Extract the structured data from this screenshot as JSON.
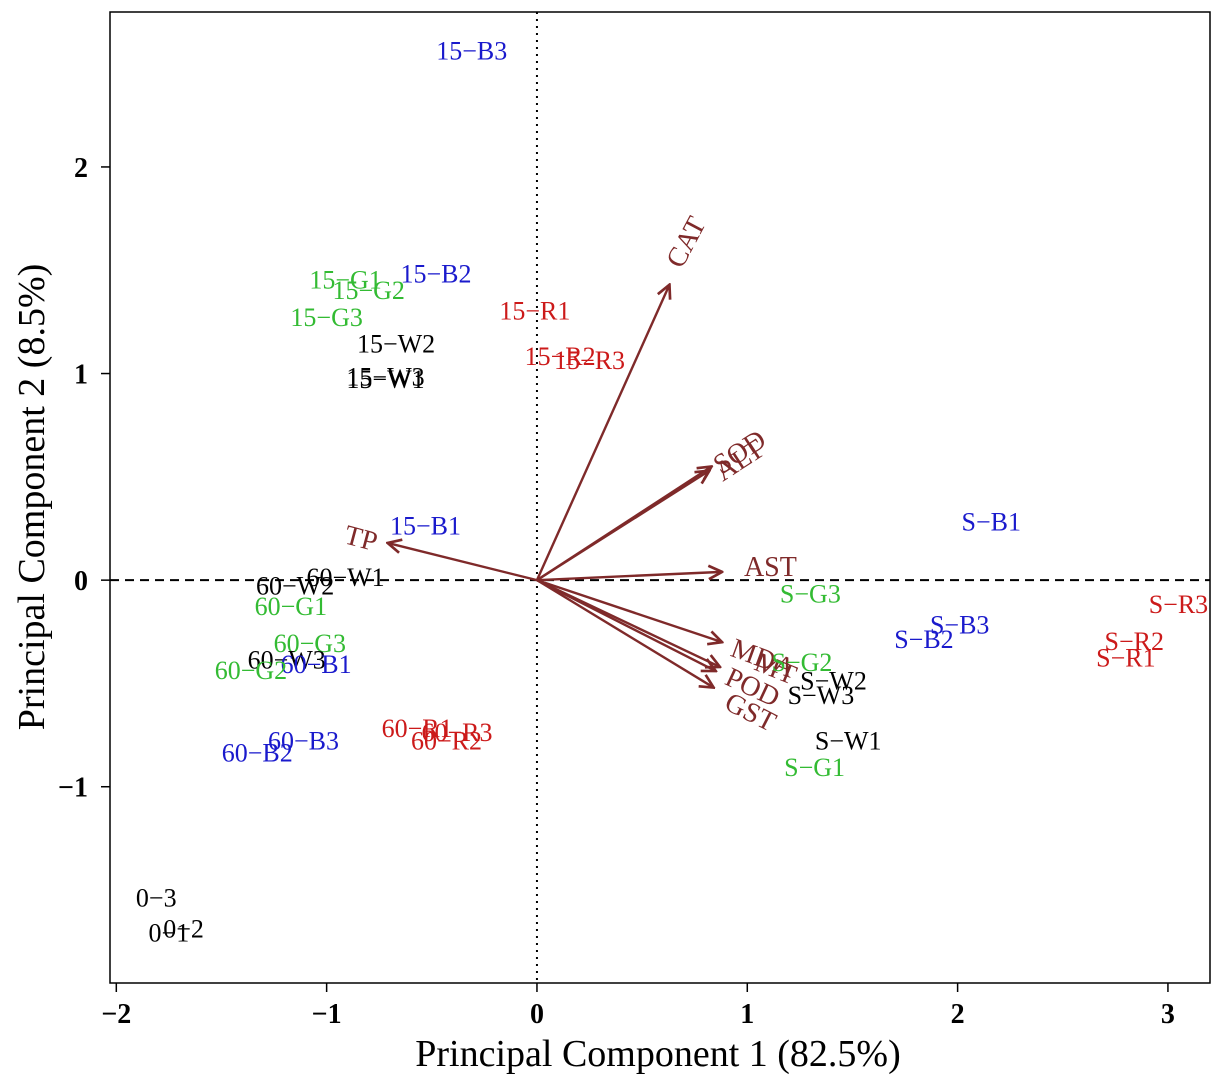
{
  "chart_data": {
    "type": "scatter",
    "subtype": "pca-biplot",
    "xlabel": "Principal Component 1 (82.5%)",
    "ylabel": "Principal Component 2 (8.5%)",
    "xlim": [
      -2.03,
      3.2
    ],
    "ylim": [
      -1.95,
      2.75
    ],
    "xticks": [
      -2,
      -1,
      0,
      1,
      2,
      3
    ],
    "yticks": [
      -1,
      0,
      1,
      2
    ],
    "xtick_labels": [
      "−2",
      "−1",
      "0",
      "1",
      "2",
      "3"
    ],
    "ytick_labels": [
      "−1",
      "0",
      "1",
      "2"
    ],
    "reference_lines": {
      "x0": "dotted",
      "y0": "dashed"
    },
    "colors": {
      "W": "#000000",
      "G": "#33bb33",
      "B": "#1a1acc",
      "R": "#cc1a1a",
      "control": "#000000",
      "vector": "#7f2a2a"
    },
    "points": [
      {
        "label": "15−B3",
        "x": -0.31,
        "y": 2.55,
        "group": "B"
      },
      {
        "label": "15−G1",
        "x": -0.91,
        "y": 1.44,
        "group": "G"
      },
      {
        "label": "15−B2",
        "x": -0.48,
        "y": 1.47,
        "group": "B"
      },
      {
        "label": "15−G2",
        "x": -0.8,
        "y": 1.39,
        "group": "G"
      },
      {
        "label": "15−G3",
        "x": -1.0,
        "y": 1.26,
        "group": "G"
      },
      {
        "label": "15−R1",
        "x": -0.01,
        "y": 1.29,
        "group": "R"
      },
      {
        "label": "15−W2",
        "x": -0.67,
        "y": 1.13,
        "group": "W"
      },
      {
        "label": "15−R2",
        "x": 0.11,
        "y": 1.07,
        "group": "R"
      },
      {
        "label": "15−R3",
        "x": 0.25,
        "y": 1.05,
        "group": "R"
      },
      {
        "label": "15−W3",
        "x": -0.72,
        "y": 0.97,
        "group": "W"
      },
      {
        "label": "15−W1",
        "x": -0.72,
        "y": 0.96,
        "group": "W"
      },
      {
        "label": "15−B1",
        "x": -0.53,
        "y": 0.25,
        "group": "B"
      },
      {
        "label": "60−W1",
        "x": -0.91,
        "y": 0.0,
        "group": "W"
      },
      {
        "label": "60−W2",
        "x": -1.15,
        "y": -0.04,
        "group": "W"
      },
      {
        "label": "60−G1",
        "x": -1.17,
        "y": -0.14,
        "group": "G"
      },
      {
        "label": "60−G3",
        "x": -1.08,
        "y": -0.32,
        "group": "G"
      },
      {
        "label": "60−W3",
        "x": -1.19,
        "y": -0.4,
        "group": "W"
      },
      {
        "label": "60−B1",
        "x": -1.05,
        "y": -0.42,
        "group": "B"
      },
      {
        "label": "60−G2",
        "x": -1.36,
        "y": -0.45,
        "group": "G"
      },
      {
        "label": "60−R1",
        "x": -0.57,
        "y": -0.73,
        "group": "R"
      },
      {
        "label": "60−R3",
        "x": -0.38,
        "y": -0.75,
        "group": "R"
      },
      {
        "label": "60−R2",
        "x": -0.43,
        "y": -0.79,
        "group": "R"
      },
      {
        "label": "60−B3",
        "x": -1.11,
        "y": -0.79,
        "group": "B"
      },
      {
        "label": "60−B2",
        "x": -1.33,
        "y": -0.85,
        "group": "B"
      },
      {
        "label": "S−B1",
        "x": 2.16,
        "y": 0.27,
        "group": "B"
      },
      {
        "label": "S−R3",
        "x": 3.05,
        "y": -0.13,
        "group": "R"
      },
      {
        "label": "S−G3",
        "x": 1.3,
        "y": -0.08,
        "group": "G"
      },
      {
        "label": "S−B3",
        "x": 2.01,
        "y": -0.23,
        "group": "B"
      },
      {
        "label": "S−B2",
        "x": 1.84,
        "y": -0.3,
        "group": "B"
      },
      {
        "label": "S−R2",
        "x": 2.84,
        "y": -0.31,
        "group": "R"
      },
      {
        "label": "S−R1",
        "x": 2.8,
        "y": -0.39,
        "group": "R"
      },
      {
        "label": "S−G2",
        "x": 1.26,
        "y": -0.41,
        "group": "G"
      },
      {
        "label": "S−W2",
        "x": 1.41,
        "y": -0.5,
        "group": "W"
      },
      {
        "label": "S−W3",
        "x": 1.35,
        "y": -0.57,
        "group": "W"
      },
      {
        "label": "S−W1",
        "x": 1.48,
        "y": -0.79,
        "group": "W"
      },
      {
        "label": "S−G1",
        "x": 1.32,
        "y": -0.92,
        "group": "G"
      },
      {
        "label": "0−3",
        "x": -1.81,
        "y": -1.55,
        "group": "control"
      },
      {
        "label": "0−1",
        "x": -1.75,
        "y": -1.72,
        "group": "control"
      },
      {
        "label": "0−2",
        "x": -1.68,
        "y": -1.7,
        "group": "control"
      }
    ],
    "vectors": [
      {
        "label": "CAT",
        "x": 0.63,
        "y": 1.43,
        "label_x": 0.72,
        "label_y": 1.63,
        "label_rotate": -62
      },
      {
        "label": "SOD",
        "x": 0.83,
        "y": 0.55,
        "label_x": 0.97,
        "label_y": 0.61,
        "label_rotate": -33
      },
      {
        "label": "ALT",
        "x": 0.82,
        "y": 0.53,
        "label_x": 0.97,
        "label_y": 0.57,
        "label_rotate": -33
      },
      {
        "label": "TP",
        "x": -0.71,
        "y": 0.18,
        "label_x": -0.84,
        "label_y": 0.19,
        "label_rotate": 15
      },
      {
        "label": "AST",
        "x": 0.88,
        "y": 0.04,
        "label_x": 1.11,
        "label_y": 0.05,
        "label_rotate": 0
      },
      {
        "label": "MDA",
        "x": 0.88,
        "y": -0.3,
        "label_x": 1.07,
        "label_y": -0.39,
        "label_rotate": 20
      },
      {
        "label": "MT",
        "x": 0.87,
        "y": -0.42,
        "label_x": 1.13,
        "label_y": -0.44,
        "label_rotate": 22
      },
      {
        "label": "POD",
        "x": 0.85,
        "y": -0.44,
        "label_x": 1.02,
        "label_y": -0.53,
        "label_rotate": 25
      },
      {
        "label": "GST",
        "x": 0.84,
        "y": -0.52,
        "label_x": 1.01,
        "label_y": -0.65,
        "label_rotate": 27
      }
    ]
  }
}
